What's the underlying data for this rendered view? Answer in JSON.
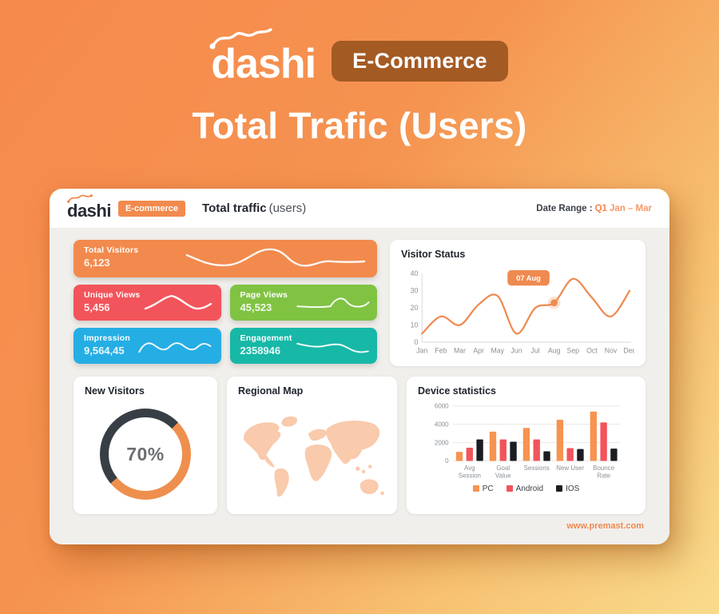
{
  "hero": {
    "logo_text": "dashi",
    "badge": "E-Commerce",
    "title": "Total Trafic (Users)"
  },
  "dashboard": {
    "header": {
      "logo_text": "dashi",
      "badge": "E-commerce",
      "title_bold": "Total traffic",
      "title_light": "(users)",
      "date_range_label": "Date Range :",
      "date_range_q": "Q1",
      "date_range_value": "Jan – Mar"
    },
    "stats": [
      {
        "label": "Total Visitors",
        "value": "6,123",
        "color": "#f28a4d"
      },
      {
        "label": "Unique Views",
        "value": "5,456",
        "color": "#f2545b"
      },
      {
        "label": "Page Views",
        "value": "45,523",
        "color": "#80c343"
      },
      {
        "label": "Impression",
        "value": "9,564,45",
        "color": "#25aee4"
      },
      {
        "label": "Engagement",
        "value": "2358946",
        "color": "#17b8a7"
      }
    ],
    "visitor_status": {
      "title": "Visitor Status"
    },
    "new_visitors": {
      "title": "New Visitors",
      "percent": "70%"
    },
    "regional_map": {
      "title": "Regional Map"
    },
    "device_statistics": {
      "title": "Device statistics"
    },
    "footer_link": "www.premast.com"
  },
  "chart_data": [
    {
      "type": "line",
      "title": "Visitor Status",
      "x": [
        "Jan",
        "Feb",
        "Mar",
        "Apr",
        "May",
        "Jun",
        "Jul",
        "Aug",
        "Sep",
        "Oct",
        "Nov",
        "Dec"
      ],
      "values": [
        5,
        15,
        10,
        22,
        27,
        5,
        20,
        23,
        37,
        26,
        15,
        30
      ],
      "ylim": [
        0,
        40
      ],
      "yticks": [
        0,
        10,
        20,
        30,
        40
      ],
      "color": "#ef8a50",
      "grid": false,
      "annotation": {
        "index": 7,
        "label": "07 Aug"
      }
    },
    {
      "type": "pie",
      "title": "New Visitors",
      "value": 70,
      "unit": "%",
      "accent_color": "#ee8f4e",
      "track_color": "#383e46",
      "arc_start_deg": 46,
      "arc_sweep_deg": 184
    },
    {
      "type": "bar",
      "title": "Device statistics",
      "categories": [
        "Avg Session",
        "Goal Value",
        "Sessions",
        "New User",
        "Bounce Rate"
      ],
      "category_lines": [
        [
          "Avg",
          "Session"
        ],
        [
          "Goal",
          "Value"
        ],
        [
          "Sessions"
        ],
        [
          "New User"
        ],
        [
          "Bounce",
          "Rate"
        ]
      ],
      "series": [
        {
          "name": "PC",
          "color": "#f79350",
          "values": [
            1000,
            3200,
            3600,
            4500,
            5400
          ]
        },
        {
          "name": "Android",
          "color": "#f2545b",
          "values": [
            1450,
            2350,
            2350,
            1400,
            4200
          ]
        },
        {
          "name": "IOS",
          "color": "#1c1d22",
          "values": [
            2350,
            2100,
            1050,
            1300,
            1350
          ]
        }
      ],
      "ylim": [
        0,
        6000
      ],
      "yticks": [
        0,
        2000,
        4000,
        6000
      ],
      "grid": true,
      "legend_position": "bottom"
    }
  ]
}
